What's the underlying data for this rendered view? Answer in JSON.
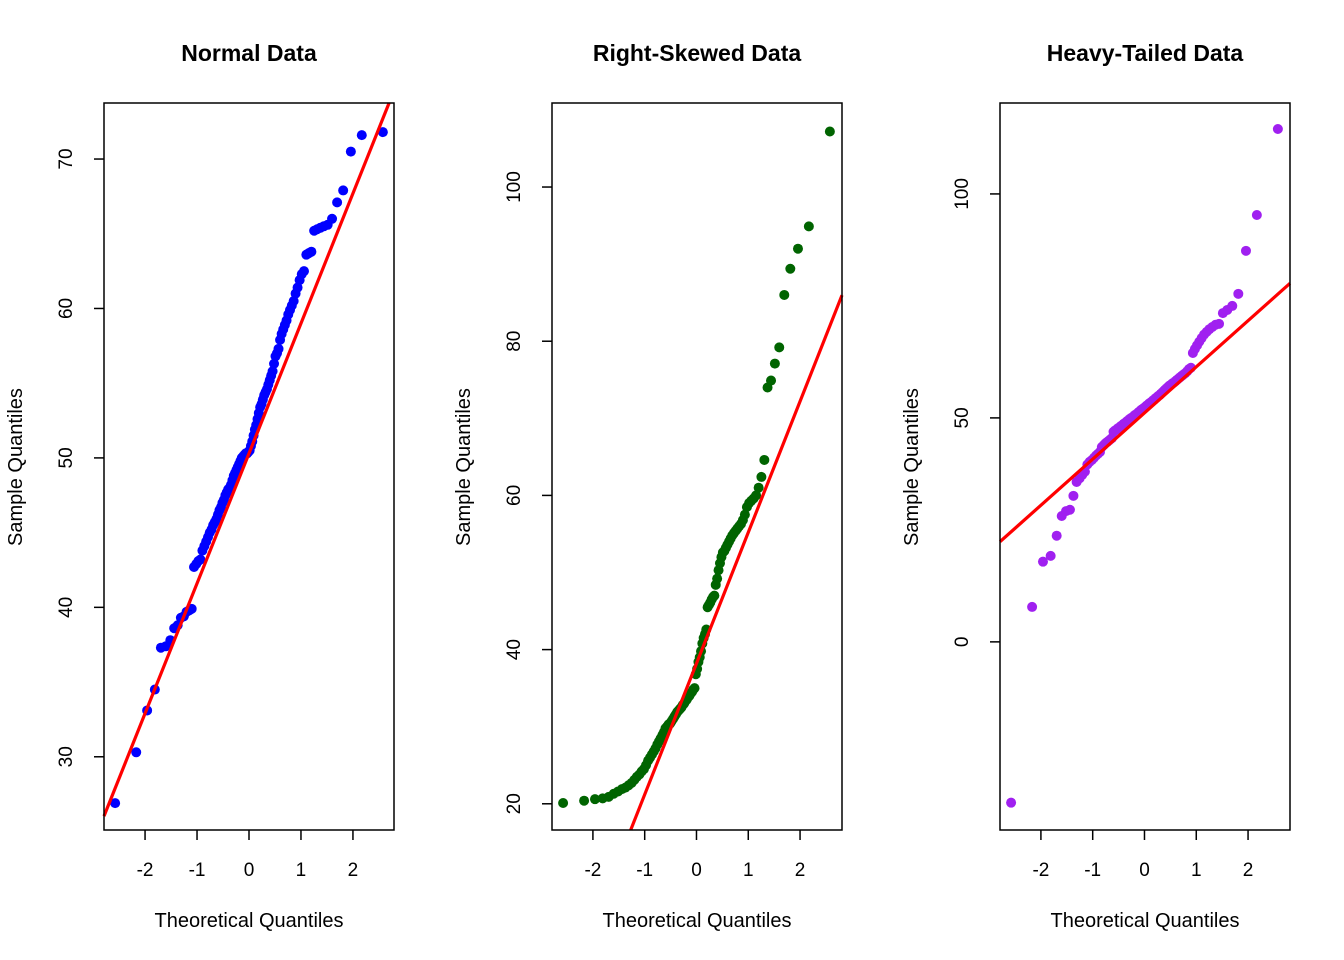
{
  "chart_data": [
    {
      "type": "scatter",
      "title": "Normal Data",
      "xlabel": "Theoretical Quantiles",
      "ylabel": "Sample Quantiles",
      "xlim": [
        -2.79,
        2.79
      ],
      "ylim": [
        25.1,
        73.75
      ],
      "xticks": [
        -2,
        -1,
        0,
        1,
        2
      ],
      "yticks": [
        30,
        40,
        50,
        60,
        70
      ],
      "point_color": "#0000FF",
      "line_color": "#FF0000",
      "reference_line": {
        "intercept": 50.3,
        "slope": 8.7
      },
      "grid": false,
      "sample_quantiles": [
        26.9,
        30.3,
        33.1,
        34.5,
        37.3,
        37.4,
        37.8,
        38.6,
        38.8,
        39.3,
        39.4,
        39.7,
        39.8,
        39.9,
        42.7,
        42.9,
        43.1,
        43.2,
        43.8,
        44.1,
        44.4,
        44.7,
        45.0,
        45.2,
        45.5,
        45.7,
        45.9,
        46.2,
        46.5,
        46.7,
        47.0,
        47.2,
        47.5,
        47.7,
        47.9,
        48.0,
        48.2,
        48.5,
        48.8,
        49.0,
        49.2,
        49.4,
        49.6,
        49.8,
        50.0,
        50.1,
        50.2,
        50.3,
        50.3,
        50.4,
        50.5,
        50.8,
        51.1,
        51.5,
        51.9,
        52.2,
        52.6,
        53.0,
        53.4,
        53.6,
        53.9,
        54.2,
        54.4,
        54.6,
        54.9,
        55.2,
        55.5,
        55.8,
        56.3,
        56.8,
        57.0,
        57.3,
        57.9,
        58.3,
        58.6,
        58.9,
        59.2,
        59.6,
        59.9,
        60.2,
        60.5,
        61.0,
        61.4,
        61.9,
        62.3,
        62.5,
        63.6,
        63.7,
        63.8,
        65.2,
        65.3,
        65.4,
        65.5,
        65.6,
        66.0,
        67.1,
        67.9,
        70.5,
        71.6,
        71.8
      ]
    },
    {
      "type": "scatter",
      "title": "Right-Skewed Data",
      "xlabel": "Theoretical Quantiles",
      "ylabel": "Sample Quantiles",
      "xlim": [
        -2.79,
        2.81
      ],
      "ylim": [
        16.6,
        110.9
      ],
      "xticks": [
        -2,
        -1,
        0,
        1,
        2
      ],
      "yticks": [
        20,
        40,
        60,
        80,
        100
      ],
      "point_color": "#006400",
      "line_color": "#FF0000",
      "reference_line": {
        "intercept": 38.2,
        "slope": 17.0
      },
      "grid": false,
      "sample_quantiles": [
        20.1,
        20.4,
        20.6,
        20.7,
        20.9,
        21.3,
        21.6,
        21.9,
        22.1,
        22.4,
        22.7,
        23.1,
        23.5,
        23.8,
        24.2,
        24.5,
        25.0,
        25.6,
        26.0,
        26.4,
        26.8,
        27.2,
        27.7,
        28.1,
        28.5,
        28.9,
        29.3,
        29.8,
        30.0,
        30.3,
        30.4,
        30.7,
        31.0,
        31.3,
        31.6,
        31.9,
        32.1,
        32.3,
        32.5,
        32.8,
        33.0,
        33.3,
        33.5,
        33.8,
        34.0,
        34.3,
        34.5,
        34.8,
        35.0,
        36.8,
        37.5,
        38.4,
        39.0,
        39.8,
        40.8,
        41.5,
        42.0,
        42.6,
        45.5,
        45.8,
        46.1,
        46.5,
        46.8,
        47.0,
        48.4,
        49.2,
        50.3,
        51.2,
        52.0,
        52.6,
        52.8,
        53.2,
        53.6,
        54.0,
        54.4,
        54.8,
        55.1,
        55.4,
        55.7,
        56.0,
        56.3,
        56.8,
        57.5,
        58.5,
        59.0,
        59.3,
        59.6,
        60.0,
        61.0,
        62.4,
        64.6,
        74.0,
        74.9,
        77.1,
        79.2,
        86.0,
        89.4,
        92.0,
        94.9,
        107.2
      ]
    },
    {
      "type": "scatter",
      "title": "Heavy-Tailed Data",
      "xlabel": "Theoretical Quantiles",
      "ylabel": "Sample Quantiles",
      "xlim": [
        -2.79,
        2.81
      ],
      "ylim": [
        -42.0,
        120.3
      ],
      "xticks": [
        -2,
        -1,
        0,
        1,
        2
      ],
      "yticks": [
        0,
        50,
        100
      ],
      "point_color": "#A020F0",
      "line_color": "#FF0000",
      "reference_line": {
        "intercept": 51.1,
        "slope": 10.3
      },
      "grid": false,
      "sample_quantiles": [
        -35.9,
        7.8,
        17.9,
        19.2,
        23.7,
        28.1,
        29.2,
        29.5,
        32.6,
        35.7,
        36.5,
        37.3,
        38.0,
        39.6,
        40.2,
        40.6,
        41.1,
        41.6,
        42.0,
        42.4,
        43.5,
        43.9,
        44.3,
        44.6,
        44.9,
        45.2,
        45.5,
        46.9,
        47.2,
        47.4,
        47.7,
        47.9,
        48.2,
        48.4,
        48.7,
        48.9,
        49.2,
        49.4,
        49.7,
        49.9,
        50.1,
        50.3,
        50.6,
        50.8,
        51.0,
        51.3,
        51.5,
        51.8,
        52.0,
        52.2,
        52.4,
        52.7,
        52.9,
        53.2,
        53.4,
        53.6,
        53.9,
        54.1,
        54.4,
        54.6,
        54.9,
        55.1,
        55.4,
        55.7,
        56.0,
        56.3,
        56.6,
        56.9,
        57.2,
        57.4,
        57.7,
        57.9,
        58.2,
        58.5,
        58.8,
        59.1,
        59.4,
        59.7,
        60.0,
        60.4,
        60.9,
        61.2,
        64.5,
        65.4,
        66.2,
        67.0,
        67.8,
        68.6,
        69.2,
        69.8,
        70.3,
        70.8,
        71.0,
        73.4,
        74.1,
        75.0,
        77.7,
        87.3,
        95.3,
        114.5
      ]
    }
  ]
}
